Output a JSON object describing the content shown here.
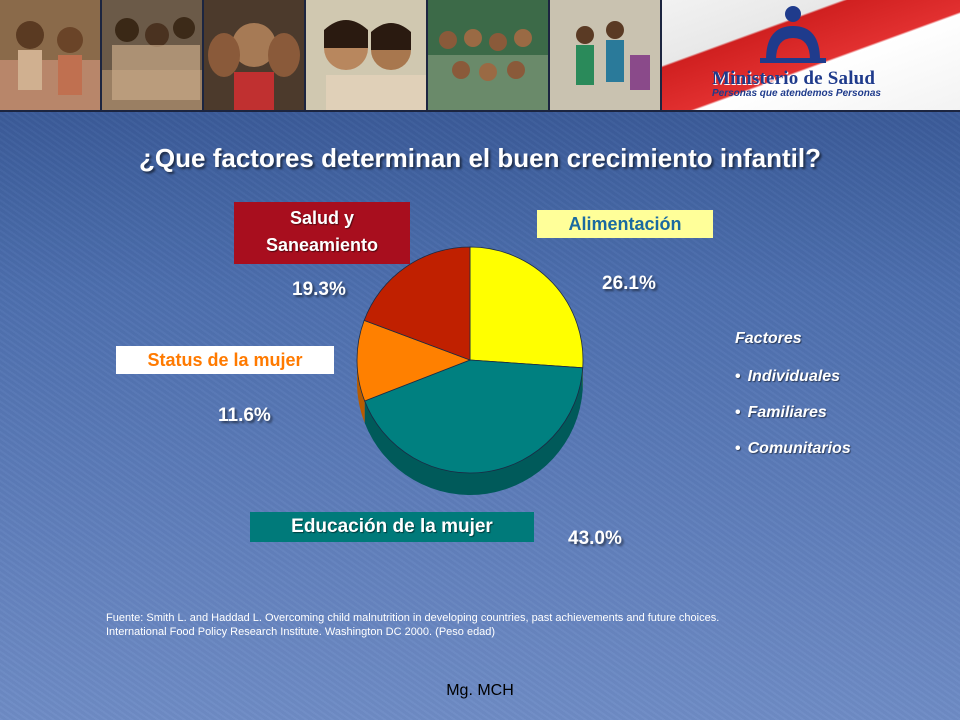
{
  "banner": {
    "logo_title": "Ministerio de Salud",
    "logo_subtitle": "Personas que atendemos Personas"
  },
  "title": "¿Que factores determinan el buen crecimiento infantil?",
  "chart_data": {
    "type": "pie",
    "labels": [
      "Alimentación",
      "Educación de la mujer",
      "Status de la mujer",
      "Salud y Saneamiento"
    ],
    "values": [
      26.1,
      43.0,
      11.6,
      19.3
    ],
    "value_labels": [
      "26.1%",
      "43.0%",
      "11.6%",
      "19.3%"
    ],
    "colors": [
      "#ffff00",
      "#008080",
      "#ff8000",
      "#c02000"
    ],
    "side_colors": [
      "#b8b800",
      "#005a5a",
      "#b85c00",
      "#7a1400"
    ]
  },
  "labels": {
    "salud_line1": "Salud y",
    "salud_line2": "Saneamiento",
    "alimentacion": "Alimentación",
    "status": "Status de la mujer",
    "educacion": "Educación de la mujer"
  },
  "factors": {
    "heading": "Factores",
    "items": [
      "Individuales",
      "Familiares",
      "Comunitarios"
    ]
  },
  "source": {
    "line1": "Fuente: Smith L. and Haddad L. Overcoming child malnutrition in developing countries, past achievements and future choices.",
    "line2": "International Food Policy Research Institute. Washington DC 2000. (Peso edad)"
  },
  "footer": "Mg. MCH"
}
